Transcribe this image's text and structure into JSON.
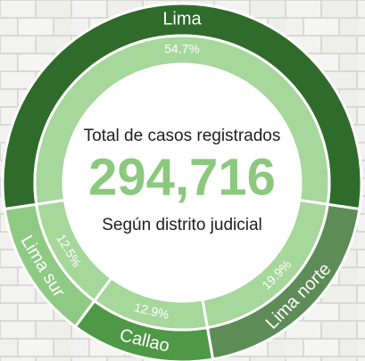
{
  "chart_data": {
    "type": "donut",
    "title": "Total de casos registrados",
    "total": {
      "value": 294716,
      "label": "294,716"
    },
    "subtitle": "Según distrito judicial",
    "categories": [
      "Lima",
      "Lima norte",
      "Callao",
      "Lima sur"
    ],
    "values": [
      54.7,
      19.9,
      12.9,
      12.5
    ],
    "value_labels": [
      "54.7%",
      "19.9%",
      "12.9%",
      "12.5%"
    ],
    "colors": [
      "#2f6b2b",
      "#5e8c56",
      "#4f9946",
      "#8fca84"
    ],
    "inner_color": "#a6d79b"
  }
}
